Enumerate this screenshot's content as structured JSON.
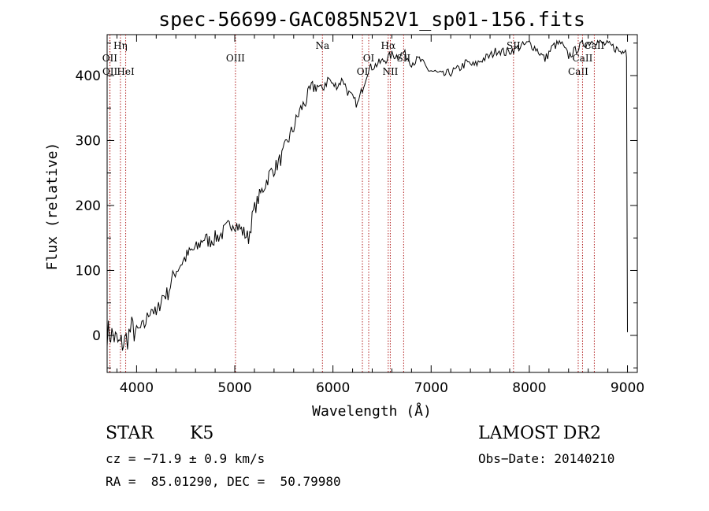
{
  "chart_data": {
    "type": "line",
    "title": "spec-56699-GAC085N52V1_sp01-156.fits",
    "xlabel": "Wavelength (Å)",
    "ylabel": "Flux (relative)",
    "xlim": [
      3700,
      9100
    ],
    "ylim": [
      -57,
      463
    ],
    "xticks": [
      4000,
      5000,
      6000,
      7000,
      8000,
      9000
    ],
    "yticks": [
      0,
      100,
      200,
      300,
      400
    ],
    "series": [
      {
        "x": [
          3700,
          3760,
          3820,
          3880,
          3950,
          4000,
          4080,
          4150,
          4200,
          4260,
          4320,
          4380,
          4450,
          4500,
          4560,
          4620,
          4680,
          4740,
          4800,
          4860,
          4920,
          4980,
          5020,
          5080,
          5140,
          5190,
          5240,
          5300,
          5360,
          5420,
          5480,
          5540,
          5600,
          5660,
          5720,
          5780,
          5840,
          5880,
          5920,
          5960,
          6000,
          6050,
          6100,
          6150,
          6200,
          6250,
          6300,
          6360,
          6420,
          6480,
          6540,
          6600,
          6660,
          6720,
          6800,
          6880,
          6960,
          7040,
          7120,
          7200,
          7280,
          7360,
          7440,
          7520,
          7600,
          7680,
          7760,
          7840,
          7920,
          8000,
          8080,
          8160,
          8240,
          8320,
          8400,
          8480,
          8540,
          8600,
          8660,
          8720,
          8780,
          8840,
          8900,
          8940,
          8960,
          8980,
          8990,
          9000
        ],
        "y": [
          5,
          0,
          -15,
          -10,
          10,
          5,
          15,
          45,
          30,
          60,
          65,
          95,
          110,
          120,
          130,
          135,
          150,
          145,
          150,
          155,
          165,
          175,
          170,
          160,
          150,
          190,
          210,
          230,
          250,
          260,
          275,
          300,
          320,
          345,
          360,
          380,
          385,
          375,
          390,
          395,
          385,
          385,
          395,
          375,
          365,
          355,
          380,
          410,
          415,
          420,
          425,
          432,
          430,
          435,
          420,
          425,
          410,
          405,
          400,
          405,
          410,
          420,
          415,
          425,
          430,
          440,
          435,
          440,
          445,
          450,
          440,
          425,
          445,
          450,
          430,
          440,
          448,
          450,
          455,
          450,
          448,
          445,
          440,
          435,
          440,
          445,
          430,
          5
        ]
      }
    ],
    "line_markers": [
      {
        "label": "Hη",
        "x": 3835,
        "row": 1
      },
      {
        "label": "OII",
        "x": 3727,
        "row": 2
      },
      {
        "label": "OII",
        "x": 3729,
        "row": 3
      },
      {
        "label": "HeI",
        "x": 3889,
        "row": 3
      },
      {
        "label": "OIII",
        "x": 5007,
        "row": 2
      },
      {
        "label": "Na",
        "x": 5893,
        "row": 1
      },
      {
        "label": "OI",
        "x": 6300,
        "row": 3
      },
      {
        "label": "OI",
        "x": 6364,
        "row": 2
      },
      {
        "label": "Hα",
        "x": 6563,
        "row": 1
      },
      {
        "label": "NII",
        "x": 6584,
        "row": 3
      },
      {
        "label": "SII",
        "x": 6720,
        "row": 2
      },
      {
        "label": "SII",
        "x": 7839,
        "row": 1
      },
      {
        "label": "CaII",
        "x": 8498,
        "row": 3
      },
      {
        "label": "CaII",
        "x": 8542,
        "row": 2
      },
      {
        "label": "CaII",
        "x": 8662,
        "row": 1
      }
    ],
    "grid": false
  },
  "info": {
    "class": "STAR",
    "subclass": "K5",
    "cz": "cz = −71.9 ± 0.9 km/s",
    "radec": "RA =  85.01290, DEC =  50.79980",
    "survey": "LAMOST DR2",
    "obsdate": "Obs−Date: 20140210"
  }
}
